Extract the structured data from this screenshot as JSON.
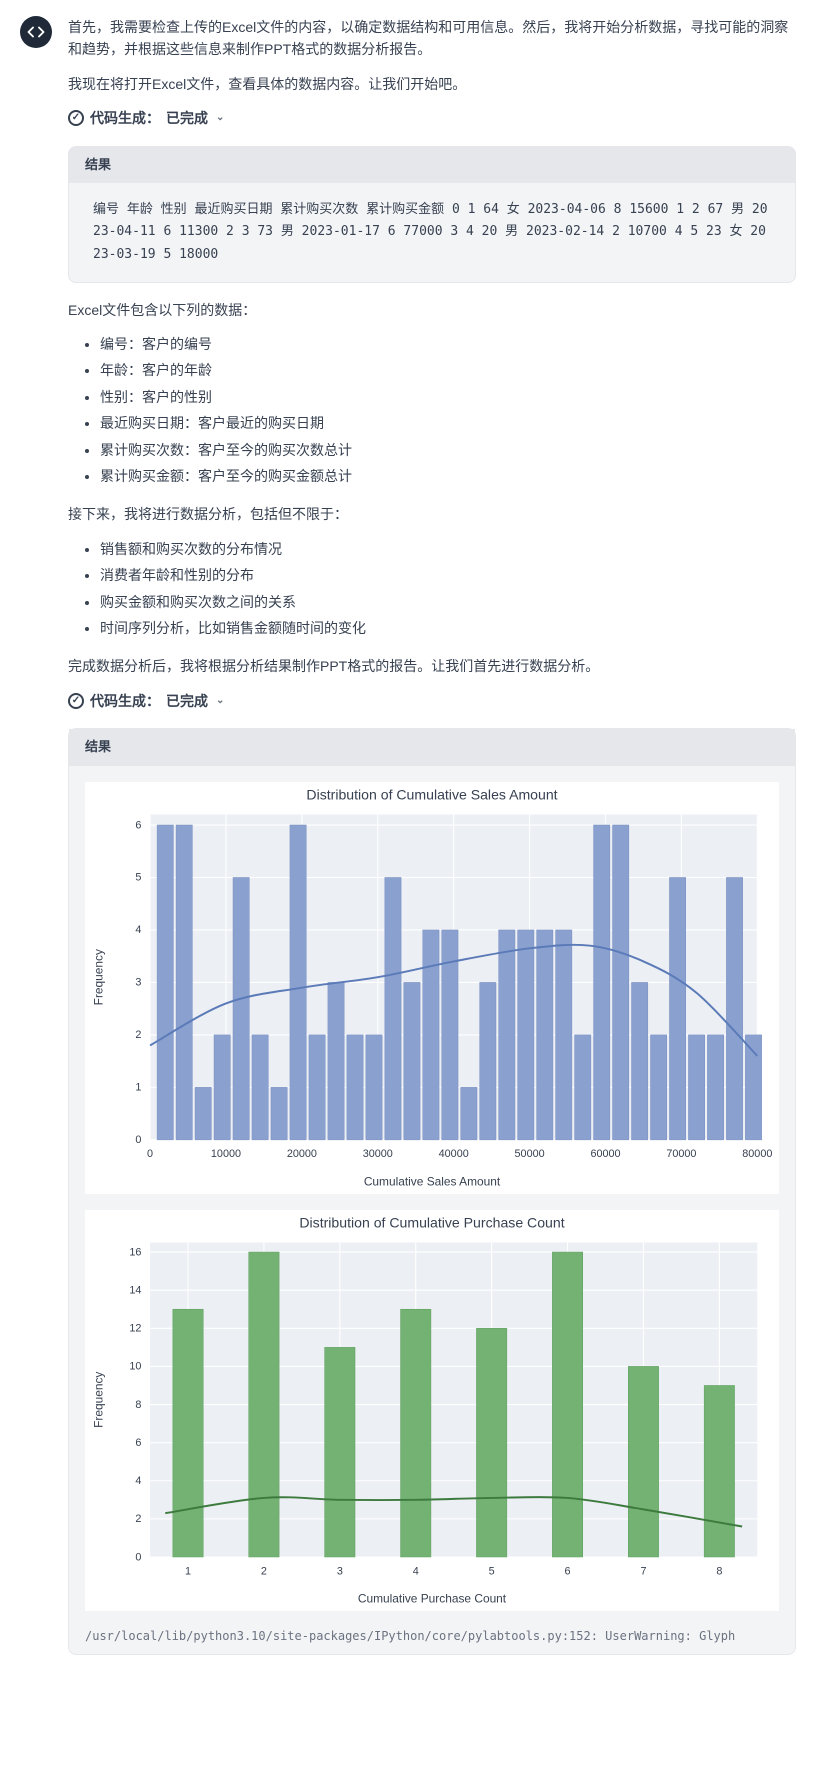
{
  "intro": {
    "p1": "首先，我需要检查上传的Excel文件的内容，以确定数据结构和可用信息。然后，我将开始分析数据，寻找可能的洞察和趋势，并根据这些信息来制作PPT格式的数据分析报告。",
    "p2": "我现在将打开Excel文件，查看具体的数据内容。让我们开始吧。"
  },
  "code_status": {
    "label": "代码生成：",
    "state": "已完成"
  },
  "result1": {
    "header": "结果",
    "body": "编号 年龄 性别 最近购买日期 累计购买次数 累计购买金额 0 1 64 女 2023-04-06 8 15600 1 2 67 男 2023-04-11 6 11300 2 3 73 男 2023-01-17 6 77000 3 4 20 男 2023-02-14 2 10700 4 5 23 女 2023-03-19 5 18000"
  },
  "fields_intro": "Excel文件包含以下列的数据：",
  "fields": [
    "编号：客户的编号",
    "年龄：客户的年龄",
    "性别：客户的性别",
    "最近购买日期：客户最近的购买日期",
    "累计购买次数：客户至今的购买次数总计",
    "累计购买金额：客户至今的购买金额总计"
  ],
  "analysis_intro": "接下来，我将进行数据分析，包括但不限于：",
  "analysis": [
    "销售额和购买次数的分布情况",
    "消费者年龄和性别的分布",
    "购买金额和购买次数之间的关系",
    "时间序列分析，比如销售金额随时间的变化"
  ],
  "analysis_close": "完成数据分析后，我将根据分析结果制作PPT格式的报告。让我们首先进行数据分析。",
  "result2_header": "结果",
  "chart1": {
    "type": "histogram",
    "title": "Distribution of Cumulative Sales Amount",
    "xlabel": "Cumulative Sales Amount",
    "ylabel": "Frequency",
    "xlim": [
      0,
      80000
    ],
    "ylim": [
      0,
      6.2
    ],
    "xtick_step": 10000,
    "ytick_step": 1,
    "bar_color": "#8aa1d0",
    "bar_edge": "#7a91c2",
    "kde_color": "#5a7ab8",
    "background": "#ffffff",
    "plot_bg": "#eceff4",
    "grid_color": "#ffffff",
    "bins": [
      {
        "x": 2000,
        "h": 6
      },
      {
        "x": 4500,
        "h": 6
      },
      {
        "x": 7000,
        "h": 1
      },
      {
        "x": 9500,
        "h": 2
      },
      {
        "x": 12000,
        "h": 5
      },
      {
        "x": 14500,
        "h": 2
      },
      {
        "x": 17000,
        "h": 1
      },
      {
        "x": 19500,
        "h": 6
      },
      {
        "x": 22000,
        "h": 2
      },
      {
        "x": 24500,
        "h": 3
      },
      {
        "x": 27000,
        "h": 2
      },
      {
        "x": 29500,
        "h": 2
      },
      {
        "x": 32000,
        "h": 5
      },
      {
        "x": 34500,
        "h": 3
      },
      {
        "x": 37000,
        "h": 4
      },
      {
        "x": 39500,
        "h": 4
      },
      {
        "x": 42000,
        "h": 1
      },
      {
        "x": 44500,
        "h": 3
      },
      {
        "x": 47000,
        "h": 4
      },
      {
        "x": 49500,
        "h": 4
      },
      {
        "x": 52000,
        "h": 4
      },
      {
        "x": 54500,
        "h": 4
      },
      {
        "x": 57000,
        "h": 2
      },
      {
        "x": 59500,
        "h": 6
      },
      {
        "x": 62000,
        "h": 6
      },
      {
        "x": 64500,
        "h": 3
      },
      {
        "x": 67000,
        "h": 2
      },
      {
        "x": 69500,
        "h": 5
      },
      {
        "x": 72000,
        "h": 2
      },
      {
        "x": 74500,
        "h": 2
      },
      {
        "x": 77000,
        "h": 5
      },
      {
        "x": 79500,
        "h": 2
      }
    ],
    "kde_points": [
      {
        "x": 0,
        "y": 1.8
      },
      {
        "x": 10000,
        "y": 2.6
      },
      {
        "x": 20000,
        "y": 2.9
      },
      {
        "x": 30000,
        "y": 3.1
      },
      {
        "x": 40000,
        "y": 3.4
      },
      {
        "x": 50000,
        "y": 3.65
      },
      {
        "x": 58000,
        "y": 3.7
      },
      {
        "x": 65000,
        "y": 3.4
      },
      {
        "x": 72000,
        "y": 2.8
      },
      {
        "x": 80000,
        "y": 1.6
      }
    ]
  },
  "chart2": {
    "type": "histogram",
    "title": "Distribution of Cumulative Purchase Count",
    "xlabel": "Cumulative Purchase Count",
    "ylabel": "Frequency",
    "xlim": [
      0.5,
      8.5
    ],
    "ylim": [
      0,
      16.5
    ],
    "xtick_step": 1,
    "ytick_step": 2,
    "bar_color": "#74b274",
    "bar_edge": "#5fa15f",
    "kde_color": "#3d7a3d",
    "background": "#ffffff",
    "plot_bg": "#eceff4",
    "grid_color": "#ffffff",
    "bins": [
      {
        "x": 1,
        "h": 13
      },
      {
        "x": 2,
        "h": 16
      },
      {
        "x": 3,
        "h": 11
      },
      {
        "x": 4,
        "h": 13
      },
      {
        "x": 5,
        "h": 12
      },
      {
        "x": 6,
        "h": 16
      },
      {
        "x": 7,
        "h": 10
      },
      {
        "x": 8,
        "h": 9
      }
    ],
    "kde_points": [
      {
        "x": 0.7,
        "y": 2.3
      },
      {
        "x": 2,
        "y": 3.1
      },
      {
        "x": 3,
        "y": 3.0
      },
      {
        "x": 4,
        "y": 3.0
      },
      {
        "x": 5,
        "y": 3.1
      },
      {
        "x": 6,
        "y": 3.1
      },
      {
        "x": 7,
        "y": 2.5
      },
      {
        "x": 8.3,
        "y": 1.6
      }
    ]
  },
  "warning": "/usr/local/lib/python3.10/site-packages/IPython/core/pylabtools.py:152: UserWarning: Glyph"
}
